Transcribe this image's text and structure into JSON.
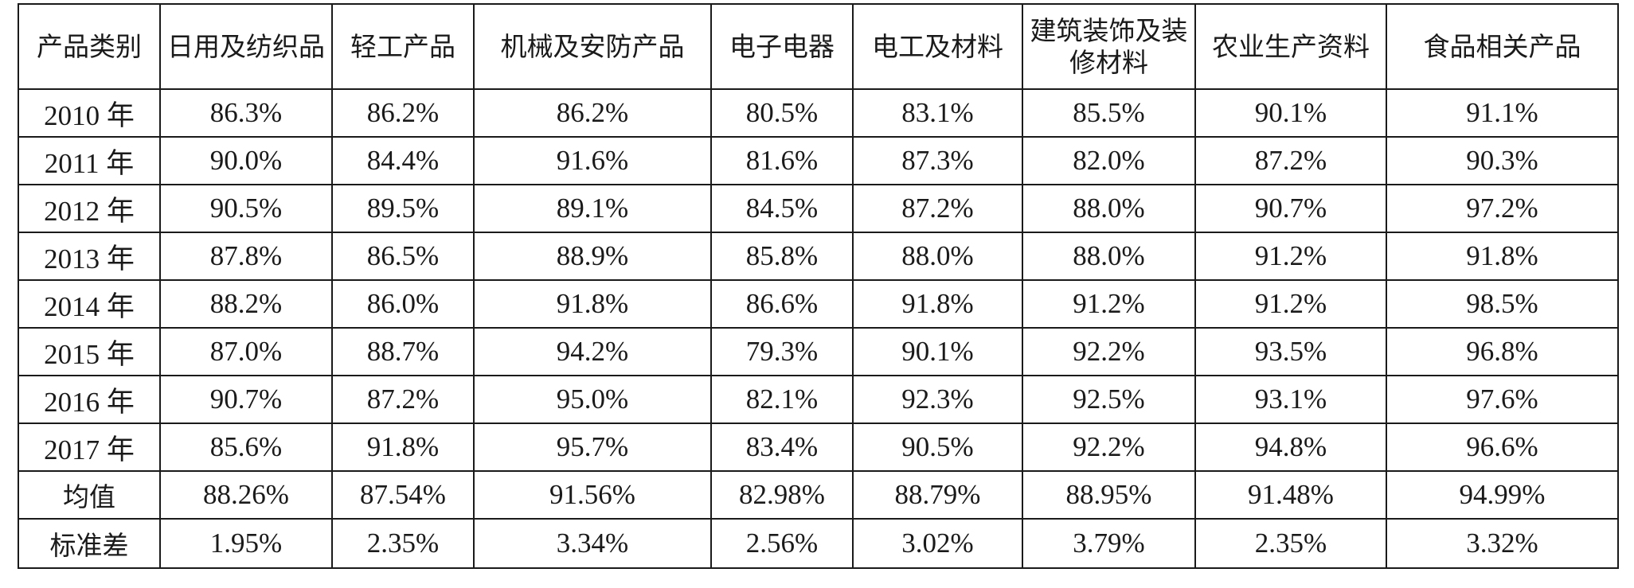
{
  "table": {
    "headers": [
      "产品类别",
      "日用及纺织品",
      "轻工产品",
      "机械及安防产品",
      "电子电器",
      "电工及材料",
      "建筑装饰及装修材料",
      "农业生产资料",
      "食品相关产品"
    ],
    "rows": [
      {
        "label": "2010 年",
        "values": [
          "86.3%",
          "86.2%",
          "86.2%",
          "80.5%",
          "83.1%",
          "85.5%",
          "90.1%",
          "91.1%"
        ]
      },
      {
        "label": "2011 年",
        "values": [
          "90.0%",
          "84.4%",
          "91.6%",
          "81.6%",
          "87.3%",
          "82.0%",
          "87.2%",
          "90.3%"
        ]
      },
      {
        "label": "2012 年",
        "values": [
          "90.5%",
          "89.5%",
          "89.1%",
          "84.5%",
          "87.2%",
          "88.0%",
          "90.7%",
          "97.2%"
        ]
      },
      {
        "label": "2013 年",
        "values": [
          "87.8%",
          "86.5%",
          "88.9%",
          "85.8%",
          "88.0%",
          "88.0%",
          "91.2%",
          "91.8%"
        ]
      },
      {
        "label": "2014 年",
        "values": [
          "88.2%",
          "86.0%",
          "91.8%",
          "86.6%",
          "91.8%",
          "91.2%",
          "91.2%",
          "98.5%"
        ]
      },
      {
        "label": "2015 年",
        "values": [
          "87.0%",
          "88.7%",
          "94.2%",
          "79.3%",
          "90.1%",
          "92.2%",
          "93.5%",
          "96.8%"
        ]
      },
      {
        "label": "2016 年",
        "values": [
          "90.7%",
          "87.2%",
          "95.0%",
          "82.1%",
          "92.3%",
          "92.5%",
          "93.1%",
          "97.6%"
        ]
      },
      {
        "label": "2017 年",
        "values": [
          "85.6%",
          "91.8%",
          "95.7%",
          "83.4%",
          "90.5%",
          "92.2%",
          "94.8%",
          "96.6%"
        ]
      },
      {
        "label": "均值",
        "values": [
          "88.26%",
          "87.54%",
          "91.56%",
          "82.98%",
          "88.79%",
          "88.95%",
          "91.48%",
          "94.99%"
        ]
      },
      {
        "label": "标准差",
        "values": [
          "1.95%",
          "2.35%",
          "3.34%",
          "2.56%",
          "3.02%",
          "3.79%",
          "2.35%",
          "3.32%"
        ]
      }
    ]
  }
}
